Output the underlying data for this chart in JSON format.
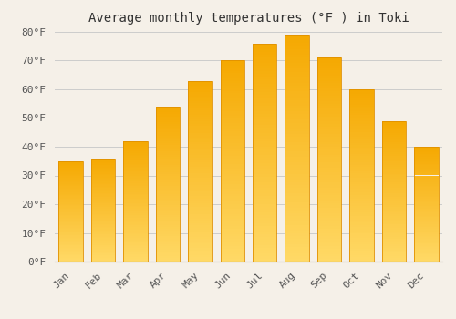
{
  "title": "Average monthly temperatures (°F ) in Toki",
  "months": [
    "Jan",
    "Feb",
    "Mar",
    "Apr",
    "May",
    "Jun",
    "Jul",
    "Aug",
    "Sep",
    "Oct",
    "Nov",
    "Dec"
  ],
  "values": [
    35,
    36,
    42,
    54,
    63,
    70,
    76,
    79,
    71,
    60,
    49,
    40
  ],
  "bar_color_top": "#F5A800",
  "bar_color_bottom": "#FFD966",
  "bar_edge_color": "#E09000",
  "background_color": "#F5F0E8",
  "grid_color": "#CCCCCC",
  "ylim": [
    0,
    80
  ],
  "yticks": [
    0,
    10,
    20,
    30,
    40,
    50,
    60,
    70,
    80
  ],
  "ytick_labels": [
    "0°F",
    "10°F",
    "20°F",
    "30°F",
    "40°F",
    "50°F",
    "60°F",
    "70°F",
    "80°F"
  ],
  "title_fontsize": 10,
  "tick_fontsize": 8,
  "font_family": "monospace",
  "bar_width": 0.75,
  "figsize": [
    5.0,
    3.5
  ],
  "dpi": 100
}
